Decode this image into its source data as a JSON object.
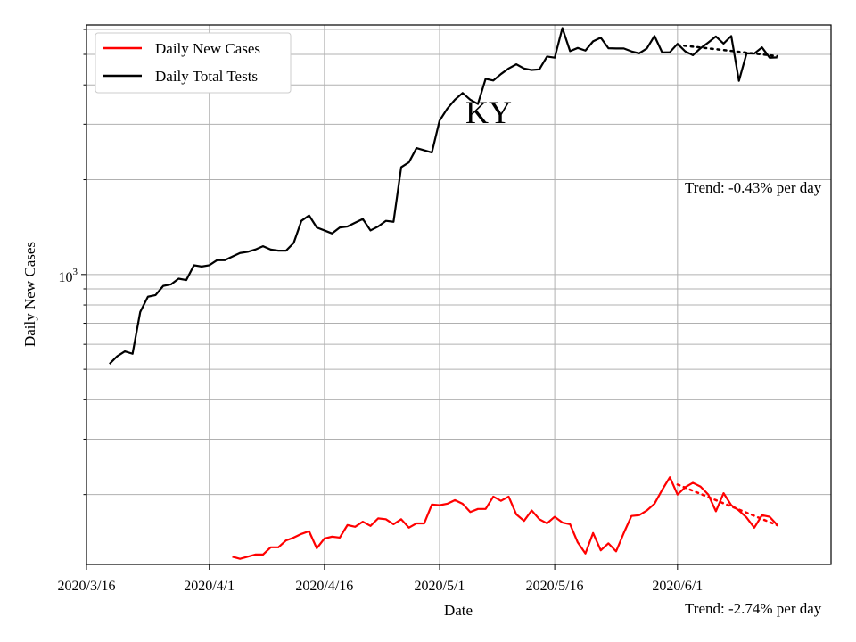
{
  "chart_data": {
    "type": "line",
    "title": "KY",
    "xlabel": "Date",
    "ylabel": "Daily New Cases",
    "yscale": "log",
    "ylim": [
      120,
      6200
    ],
    "xlim": [
      "2020-03-16",
      "2020-06-21"
    ],
    "x_ticks": [
      "2020/3/16",
      "2020/4/1",
      "2020/4/16",
      "2020/5/1",
      "2020/5/16",
      "2020/6/1"
    ],
    "y_tick_label": "10^3",
    "grid": true,
    "legend_position": "top-left",
    "series": [
      {
        "name": "Daily New Cases",
        "color": "#ff0000",
        "start_date": "2020-04-04",
        "values": [
          127,
          125,
          127,
          129,
          129,
          136,
          136,
          143,
          146,
          150,
          153,
          135,
          145,
          147,
          146,
          160,
          158,
          164,
          159,
          168,
          167,
          161,
          167,
          157,
          162,
          162,
          186,
          185,
          187,
          192,
          187,
          176,
          180,
          180,
          197,
          191,
          197,
          173,
          165,
          178,
          167,
          162,
          170,
          163,
          161,
          141,
          130,
          151,
          133,
          140,
          132,
          151,
          171,
          172,
          178,
          187,
          207,
          227,
          200,
          211,
          218,
          212,
          200,
          177,
          202,
          185,
          178,
          169,
          157,
          172,
          170,
          160
        ],
        "trend_label": "Trend: -2.74% per day"
      },
      {
        "name": "Daily Total Tests",
        "color": "#000000",
        "start_date": "2020-03-19",
        "values": [
          520,
          550,
          570,
          560,
          760,
          850,
          860,
          920,
          930,
          970,
          960,
          1070,
          1060,
          1070,
          1110,
          1110,
          1140,
          1170,
          1180,
          1200,
          1230,
          1200,
          1190,
          1190,
          1260,
          1480,
          1540,
          1410,
          1380,
          1350,
          1410,
          1420,
          1460,
          1500,
          1380,
          1420,
          1480,
          1470,
          2190,
          2270,
          2520,
          2480,
          2440,
          3080,
          3360,
          3590,
          3770,
          3590,
          3480,
          4180,
          4130,
          4330,
          4510,
          4650,
          4510,
          4460,
          4480,
          4920,
          4880,
          6060,
          5120,
          5240,
          5140,
          5500,
          5650,
          5230,
          5220,
          5220,
          5110,
          5040,
          5220,
          5720,
          5070,
          5080,
          5400,
          5110,
          4970,
          5230,
          5450,
          5700,
          5410,
          5720,
          4120,
          5040,
          5030,
          5260,
          4880,
          4890
        ],
        "trend_label": "Trend: -0.43% per day"
      }
    ]
  }
}
